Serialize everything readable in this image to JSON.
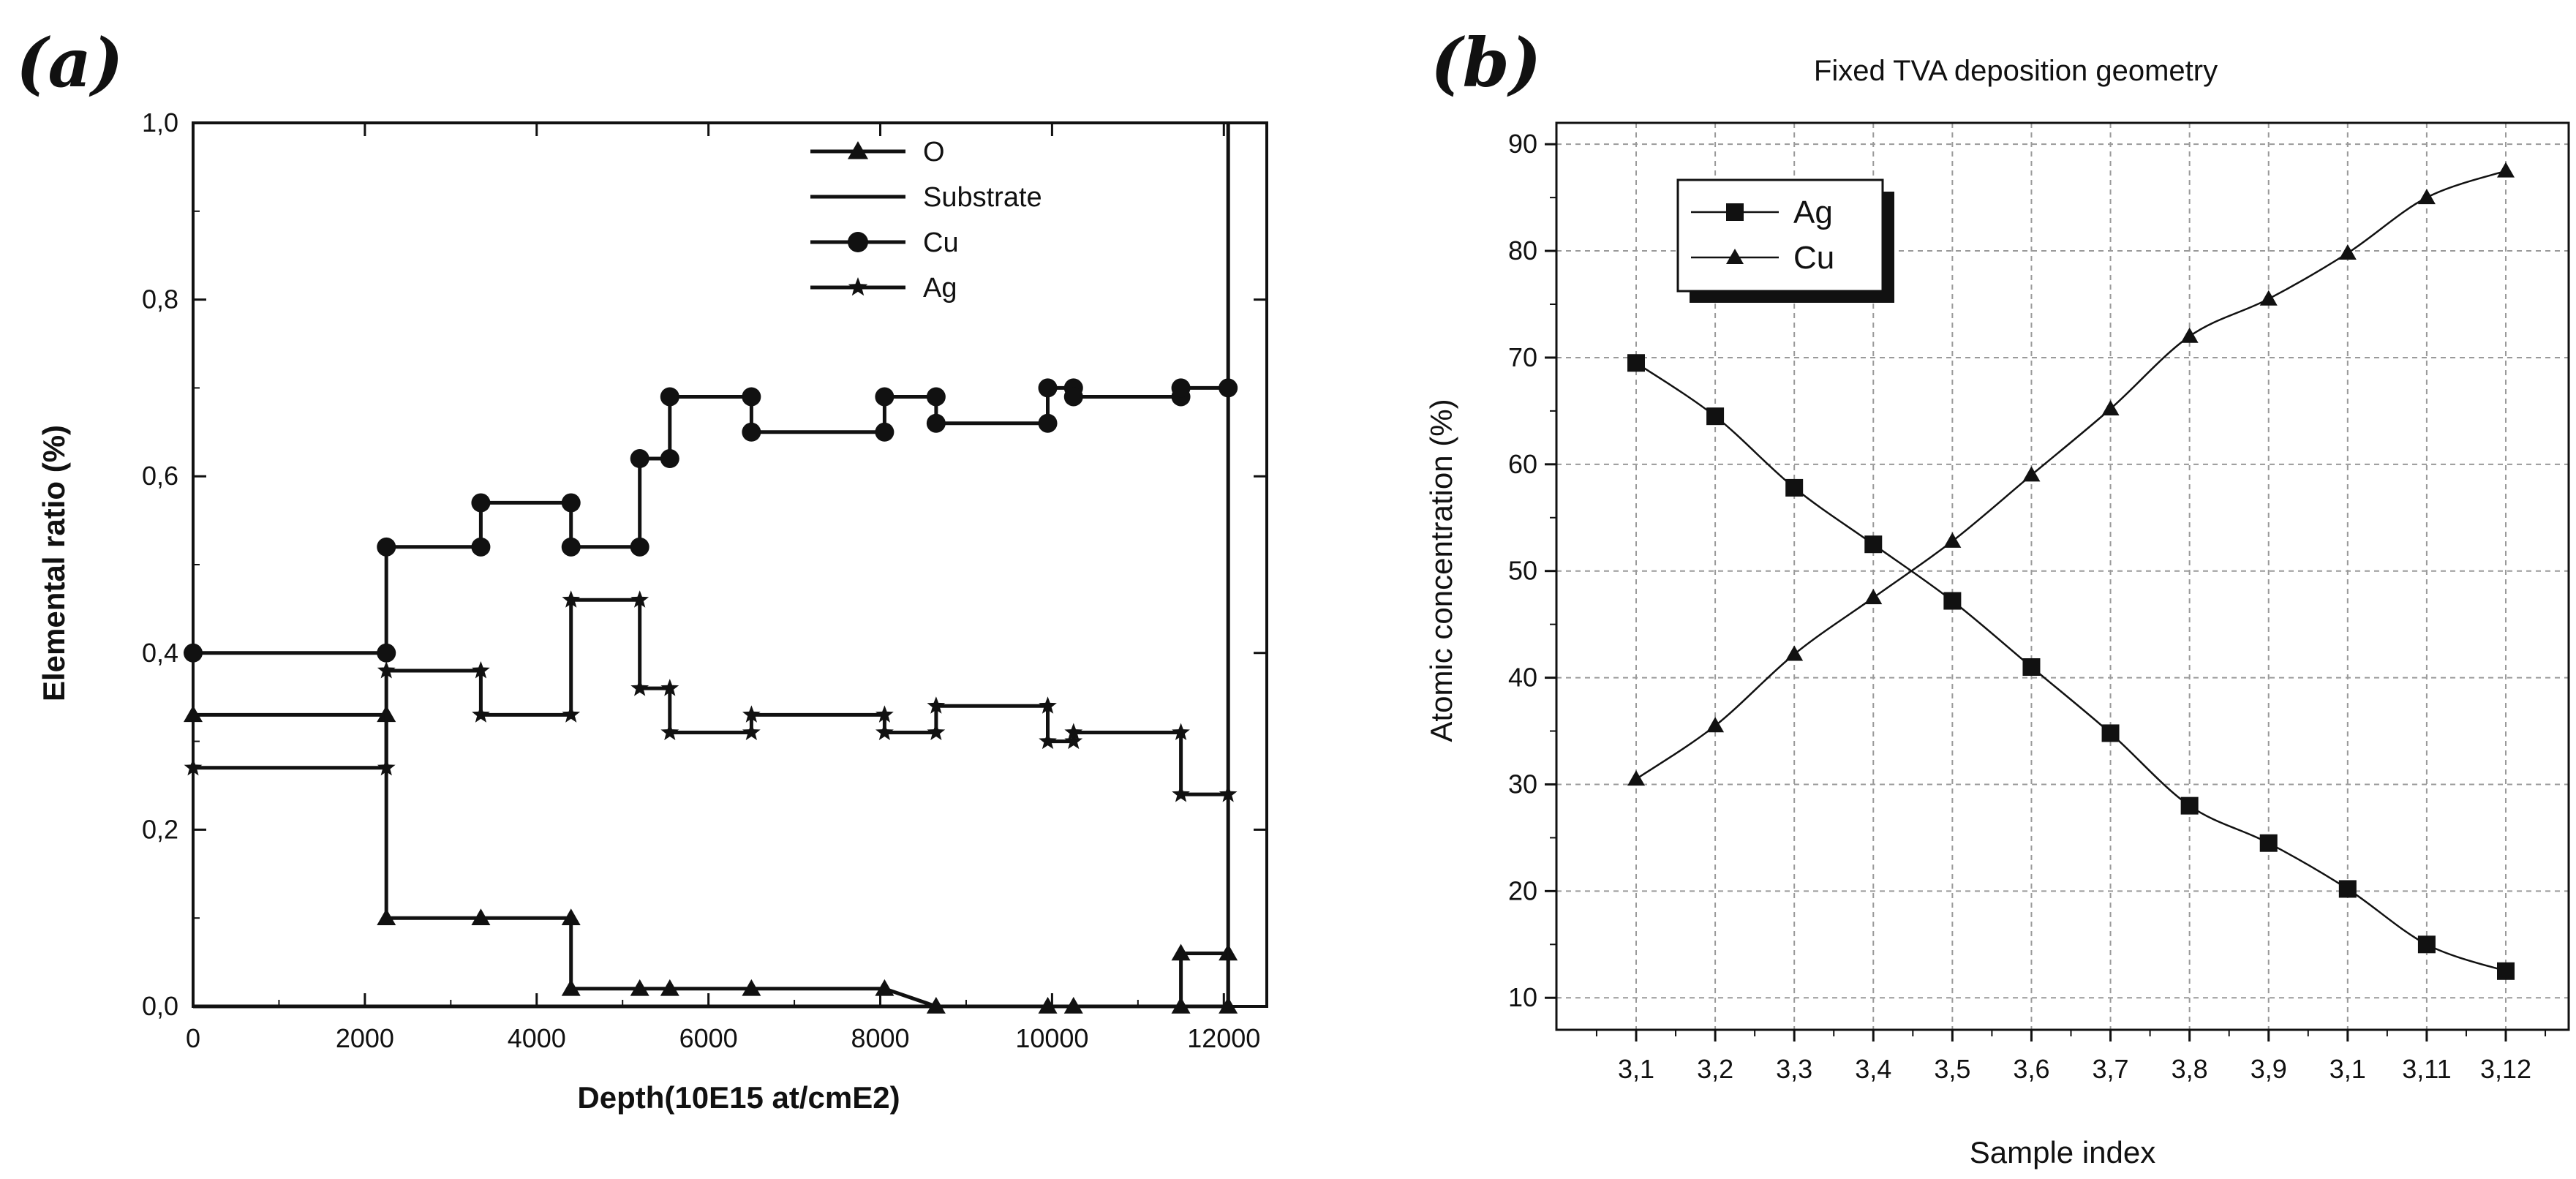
{
  "chart_data": [
    {
      "type": "line",
      "panel_label": "(a)",
      "title": "",
      "xlabel": "Depth(10E15 at/cmE2)",
      "ylabel": "Elemental ratio (%)",
      "xlim": [
        0,
        12500
      ],
      "ylim": [
        0,
        1.0
      ],
      "xticks": [
        0,
        2000,
        4000,
        6000,
        8000,
        10000,
        12000
      ],
      "xtick_labels": [
        "0",
        "2000",
        "4000",
        "6000",
        "8000",
        "10000",
        "12000"
      ],
      "yticks": [
        0,
        0.2,
        0.4,
        0.6,
        0.8,
        1.0
      ],
      "ytick_labels": [
        "0,0",
        "0,2",
        "0,4",
        "0,6",
        "0,8",
        "1,0"
      ],
      "grid": false,
      "legend_position": "top-right",
      "series": [
        {
          "name": "O",
          "marker": "triangle",
          "x": [
            0,
            2250,
            2250,
            3350,
            4400,
            4400,
            5200,
            5550,
            6500,
            8050,
            8650,
            9950,
            10250,
            11500,
            11500,
            12050,
            12050
          ],
          "y": [
            0.33,
            0.33,
            0.1,
            0.1,
            0.1,
            0.02,
            0.02,
            0.02,
            0.02,
            0.02,
            0.0,
            0.0,
            0.0,
            0.0,
            0.06,
            0.06,
            0.0
          ]
        },
        {
          "name": "Substrate",
          "marker": "none",
          "x": [
            0,
            12050,
            12050
          ],
          "y": [
            0.0,
            0.0,
            1.0
          ]
        },
        {
          "name": "Cu",
          "marker": "circle",
          "x": [
            0,
            2250,
            2250,
            3350,
            3350,
            4400,
            4400,
            5200,
            5200,
            5550,
            5550,
            6500,
            6500,
            8050,
            8050,
            8650,
            8650,
            9950,
            9950,
            10250,
            10250,
            11500,
            11500,
            12050
          ],
          "y": [
            0.4,
            0.4,
            0.52,
            0.52,
            0.57,
            0.57,
            0.52,
            0.52,
            0.62,
            0.62,
            0.69,
            0.69,
            0.65,
            0.65,
            0.69,
            0.69,
            0.66,
            0.66,
            0.7,
            0.7,
            0.69,
            0.69,
            0.7,
            0.7
          ]
        },
        {
          "name": "Ag",
          "marker": "star",
          "x": [
            0,
            2250,
            2250,
            3350,
            3350,
            4400,
            4400,
            5200,
            5200,
            5550,
            5550,
            6500,
            6500,
            8050,
            8050,
            8650,
            8650,
            9950,
            9950,
            10250,
            10250,
            11500,
            11500,
            12050
          ],
          "y": [
            0.27,
            0.27,
            0.38,
            0.38,
            0.33,
            0.33,
            0.46,
            0.46,
            0.36,
            0.36,
            0.31,
            0.31,
            0.33,
            0.33,
            0.31,
            0.31,
            0.34,
            0.34,
            0.3,
            0.3,
            0.31,
            0.31,
            0.24,
            0.24
          ]
        }
      ]
    },
    {
      "type": "line",
      "panel_label": "(b)",
      "title": "Fixed TVA deposition geometry",
      "xlabel": "Sample index",
      "ylabel": "Atomic concentration (%)",
      "categories": [
        "3,1",
        "3,2",
        "3,3",
        "3,4",
        "3,5",
        "3,6",
        "3,7",
        "3,8",
        "3,9",
        "3,1",
        "3,11",
        "3,12"
      ],
      "ylim": [
        7,
        92
      ],
      "yticks": [
        10,
        20,
        30,
        40,
        50,
        60,
        70,
        80,
        90
      ],
      "ytick_labels": [
        "10",
        "20",
        "30",
        "40",
        "50",
        "60",
        "70",
        "80",
        "90"
      ],
      "grid": true,
      "legend_position": "top-left",
      "series": [
        {
          "name": "Ag",
          "marker": "square",
          "values": [
            69.5,
            64.5,
            57.8,
            52.5,
            47.2,
            41.0,
            34.8,
            28.0,
            24.5,
            20.2,
            15.0,
            12.5
          ]
        },
        {
          "name": "Cu",
          "marker": "triangle",
          "values": [
            30.5,
            35.5,
            42.2,
            47.5,
            52.8,
            59.0,
            65.2,
            72.0,
            75.5,
            79.8,
            85.0,
            87.5
          ]
        }
      ]
    }
  ]
}
